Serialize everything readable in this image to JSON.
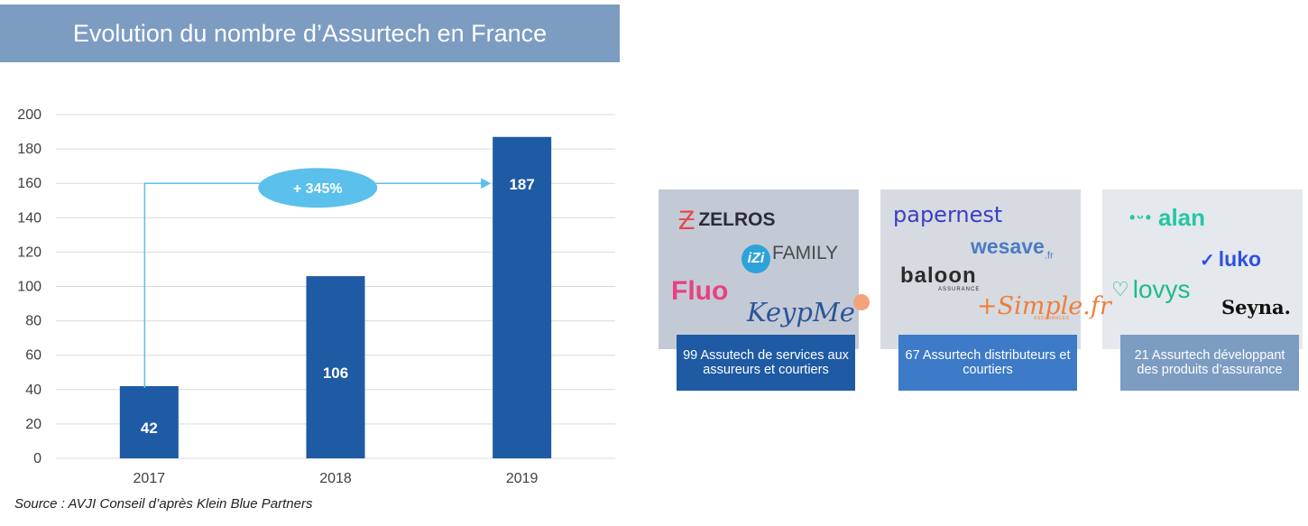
{
  "header": {
    "title": "Evolution du nombre d’Assurtech en France"
  },
  "chart_data": {
    "type": "bar",
    "title": "Evolution du nombre d’Assurtech en France",
    "categories": [
      "2017",
      "2018",
      "2019"
    ],
    "values": [
      42,
      106,
      187
    ],
    "data_labels": [
      "42",
      "106",
      "187"
    ],
    "y_ticks": [
      "0",
      "20",
      "40",
      "60",
      "80",
      "100",
      "120",
      "140",
      "160",
      "180",
      "200"
    ],
    "ylim": [
      0,
      200
    ],
    "grid": true,
    "bar_color": "#1f5aa4",
    "annotation": {
      "text": "+ 345%",
      "from": "2017",
      "to": "2019",
      "y": 160,
      "color": "#5bc0eb"
    }
  },
  "source": "Source : AVJI Conseil d’après Klein Blue Partners",
  "segments": [
    {
      "caption": "99 Assutech de services aux assureurs et courtiers",
      "color": "#1f5aa4",
      "logos": [
        "ZELROS",
        "iZi",
        "FAMILY",
        "Fluo",
        "KeypMe"
      ]
    },
    {
      "caption": "67 Assurtech distributeurs et courtiers",
      "color": "#3d7ac8",
      "logos": [
        "papernest",
        "wesave",
        ".fr",
        "baloon",
        "ASSURANCE",
        "+Simple.fr",
        "ASSURANCES"
      ]
    },
    {
      "caption": "21 Assurtech développant des produits d’assurance",
      "color": "#7c9cc2",
      "logos": [
        "alan",
        "luko",
        "lovys",
        "Seyna."
      ]
    }
  ]
}
